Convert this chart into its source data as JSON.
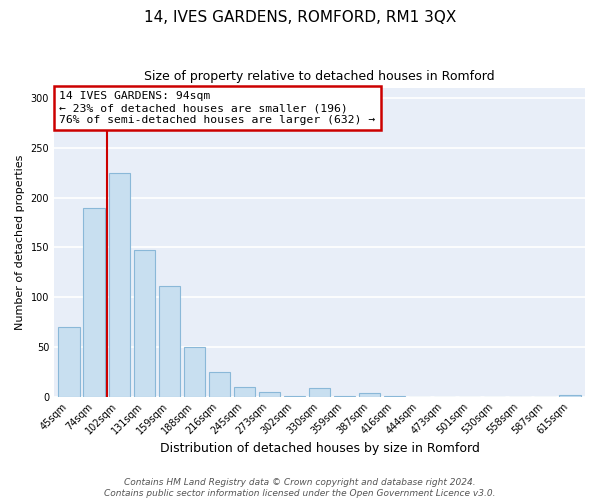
{
  "title": "14, IVES GARDENS, ROMFORD, RM1 3QX",
  "subtitle": "Size of property relative to detached houses in Romford",
  "xlabel": "Distribution of detached houses by size in Romford",
  "ylabel": "Number of detached properties",
  "bar_labels": [
    "45sqm",
    "74sqm",
    "102sqm",
    "131sqm",
    "159sqm",
    "188sqm",
    "216sqm",
    "245sqm",
    "273sqm",
    "302sqm",
    "330sqm",
    "359sqm",
    "387sqm",
    "416sqm",
    "444sqm",
    "473sqm",
    "501sqm",
    "530sqm",
    "558sqm",
    "587sqm",
    "615sqm"
  ],
  "bar_values": [
    70,
    190,
    225,
    147,
    111,
    50,
    25,
    10,
    5,
    1,
    9,
    1,
    4,
    1,
    0,
    0,
    0,
    0,
    0,
    0,
    2
  ],
  "bar_color": "#c8dff0",
  "bar_edge_color": "#8ab8d8",
  "annotation_text": "14 IVES GARDENS: 94sqm\n← 23% of detached houses are smaller (196)\n76% of semi-detached houses are larger (632) →",
  "annotation_box_color": "#ffffff",
  "annotation_box_edge": "#cc0000",
  "ylim": [
    0,
    310
  ],
  "vline_color": "#cc0000",
  "footer1": "Contains HM Land Registry data © Crown copyright and database right 2024.",
  "footer2": "Contains public sector information licensed under the Open Government Licence v3.0.",
  "bg_color": "#ffffff",
  "plot_bg_color": "#e8eef8",
  "grid_color": "#ffffff",
  "title_fontsize": 11,
  "subtitle_fontsize": 9,
  "xlabel_fontsize": 9,
  "ylabel_fontsize": 8,
  "tick_fontsize": 7,
  "footer_fontsize": 6.5
}
